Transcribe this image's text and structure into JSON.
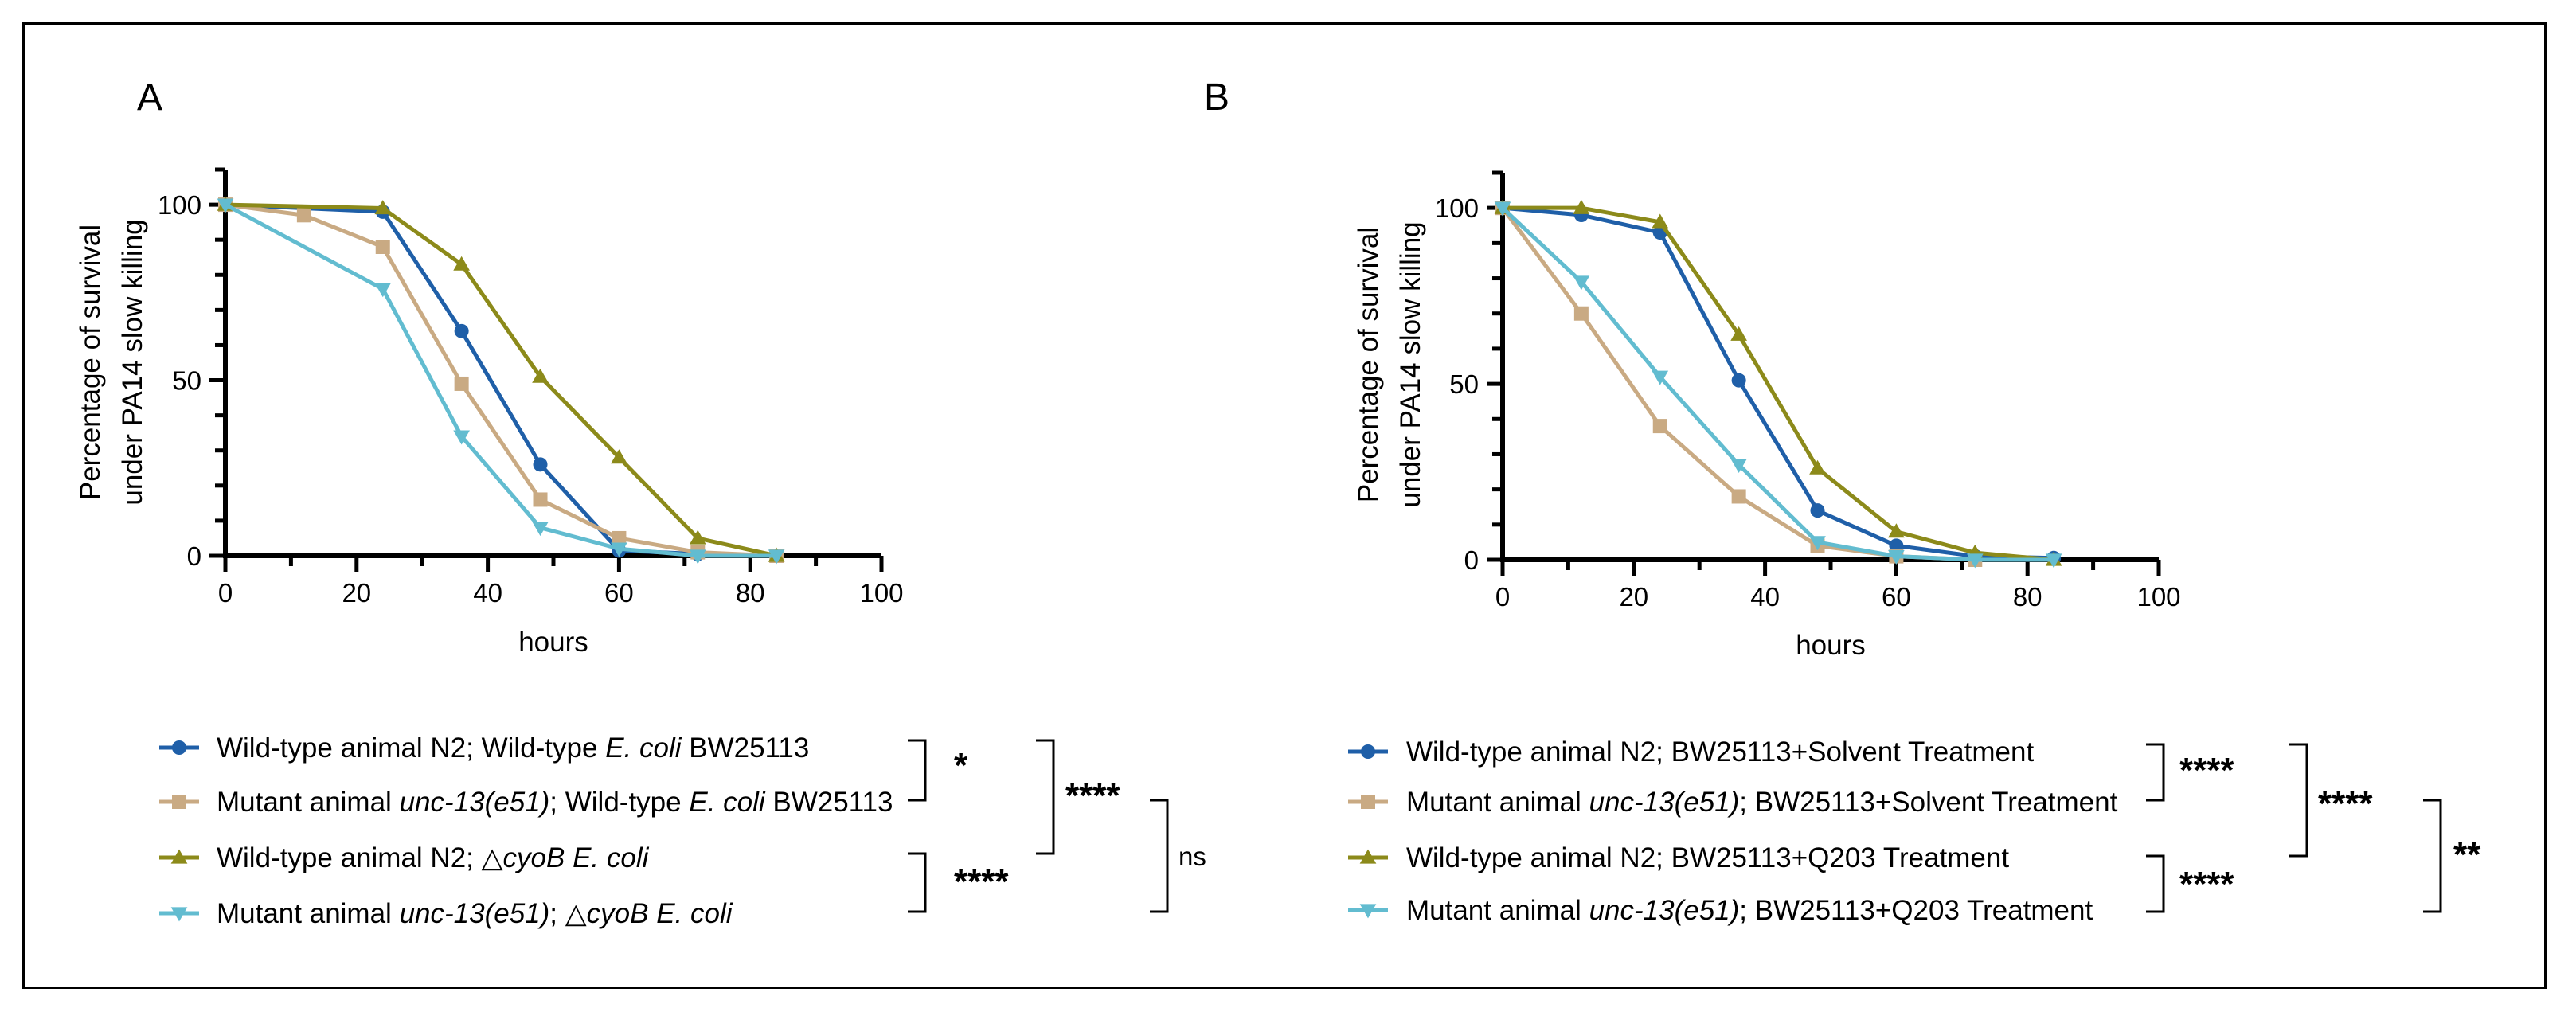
{
  "panels": [
    {
      "letter": "A",
      "chart_data": {
        "type": "line",
        "title": "",
        "xlabel": "hours",
        "ylabel_lines": [
          "Percentage of survival",
          "under PA14 slow killing"
        ],
        "xlim": [
          0,
          100
        ],
        "ylim": [
          0,
          110
        ],
        "xticks": [
          0,
          20,
          40,
          60,
          80,
          100
        ],
        "yticks": [
          0,
          50,
          100
        ],
        "series": [
          {
            "name": "wt-n2-bw25113",
            "color": "#1f5fa8",
            "marker": "circle",
            "x": [
              0,
              24,
              36,
              48,
              60,
              72,
              84
            ],
            "y": [
              100,
              98,
              64,
              26,
              1.5,
              0.5,
              0
            ]
          },
          {
            "name": "unc13-bw25113",
            "color": "#c9aa83",
            "marker": "square",
            "x": [
              0,
              12,
              24,
              36,
              48,
              60,
              72,
              84
            ],
            "y": [
              100,
              97,
              88,
              49,
              16,
              5,
              1,
              0
            ]
          },
          {
            "name": "wt-n2-cyob",
            "color": "#8c8a1a",
            "marker": "triangle-up",
            "x": [
              0,
              24,
              36,
              48,
              60,
              72,
              84
            ],
            "y": [
              100,
              99,
              83,
              51,
              28,
              5,
              0
            ]
          },
          {
            "name": "unc13-cyob",
            "color": "#62bcd0",
            "marker": "triangle-down",
            "x": [
              0,
              24,
              36,
              48,
              60,
              72,
              84
            ],
            "y": [
              100,
              76,
              34,
              8,
              2,
              0,
              0
            ]
          }
        ]
      },
      "legend": [
        {
          "color": "#1f5fa8",
          "marker": "circle",
          "parts": [
            {
              "t": "Wild-type animal N2; Wild-type ",
              "i": false
            },
            {
              "t": "E. coli",
              "i": true
            },
            {
              "t": " BW25113",
              "i": false
            }
          ]
        },
        {
          "color": "#c9aa83",
          "marker": "square",
          "parts": [
            {
              "t": "Mutant animal ",
              "i": false
            },
            {
              "t": "unc-13(e51)",
              "i": true
            },
            {
              "t": "; Wild-type ",
              "i": false
            },
            {
              "t": "E. coli",
              "i": true
            },
            {
              "t": " BW25113",
              "i": false
            }
          ]
        },
        {
          "color": "#8c8a1a",
          "marker": "triangle-up",
          "parts": [
            {
              "t": "Wild-type animal N2; △",
              "i": false
            },
            {
              "t": "cyoB E. coli",
              "i": true
            }
          ]
        },
        {
          "color": "#62bcd0",
          "marker": "triangle-down",
          "parts": [
            {
              "t": "Mutant animal ",
              "i": false
            },
            {
              "t": "unc-13(e51)",
              "i": true
            },
            {
              "t": "; △",
              "i": false
            },
            {
              "t": "cyoB E. coli",
              "i": true
            }
          ]
        }
      ],
      "significance": [
        "*",
        "****",
        "****",
        "ns"
      ]
    },
    {
      "letter": "B",
      "chart_data": {
        "type": "line",
        "title": "",
        "xlabel": "hours",
        "ylabel_lines": [
          "Percentage of survival",
          "under PA14 slow killing"
        ],
        "xlim": [
          0,
          100
        ],
        "ylim": [
          0,
          110
        ],
        "xticks": [
          0,
          20,
          40,
          60,
          80,
          100
        ],
        "yticks": [
          0,
          50,
          100
        ],
        "series": [
          {
            "name": "wt-n2-solvent",
            "color": "#1f5fa8",
            "marker": "circle",
            "x": [
              0,
              12,
              24,
              36,
              48,
              60,
              72,
              84
            ],
            "y": [
              100,
              98,
              93,
              51,
              14,
              4,
              1,
              0.5
            ]
          },
          {
            "name": "unc13-solvent",
            "color": "#c9aa83",
            "marker": "square",
            "x": [
              0,
              12,
              24,
              36,
              48,
              60,
              72
            ],
            "y": [
              100,
              70,
              38,
              18,
              4,
              1,
              0
            ]
          },
          {
            "name": "wt-n2-q203",
            "color": "#8c8a1a",
            "marker": "triangle-up",
            "x": [
              0,
              12,
              24,
              36,
              48,
              60,
              72,
              84
            ],
            "y": [
              100,
              100,
              96,
              64,
              26,
              8,
              2,
              0
            ]
          },
          {
            "name": "unc13-q203",
            "color": "#62bcd0",
            "marker": "triangle-down",
            "x": [
              0,
              12,
              24,
              36,
              48,
              60,
              72,
              84
            ],
            "y": [
              100,
              79,
              52,
              27,
              5,
              1,
              0,
              0
            ]
          }
        ]
      },
      "legend": [
        {
          "color": "#1f5fa8",
          "marker": "circle",
          "parts": [
            {
              "t": "Wild-type animal N2; BW25113+Solvent Treatment",
              "i": false
            }
          ]
        },
        {
          "color": "#c9aa83",
          "marker": "square",
          "parts": [
            {
              "t": "Mutant animal ",
              "i": false
            },
            {
              "t": "unc-13(e51)",
              "i": true
            },
            {
              "t": "; BW25113+Solvent Treatment",
              "i": false
            }
          ]
        },
        {
          "color": "#8c8a1a",
          "marker": "triangle-up",
          "parts": [
            {
              "t": "Wild-type animal N2; BW25113+Q203 Treatment",
              "i": false
            }
          ]
        },
        {
          "color": "#62bcd0",
          "marker": "triangle-down",
          "parts": [
            {
              "t": "Mutant animal ",
              "i": false
            },
            {
              "t": "unc-13(e51)",
              "i": true
            },
            {
              "t": "; BW25113+Q203 Treatment",
              "i": false
            }
          ]
        }
      ],
      "significance": [
        "****",
        "****",
        "****",
        "**"
      ]
    }
  ]
}
